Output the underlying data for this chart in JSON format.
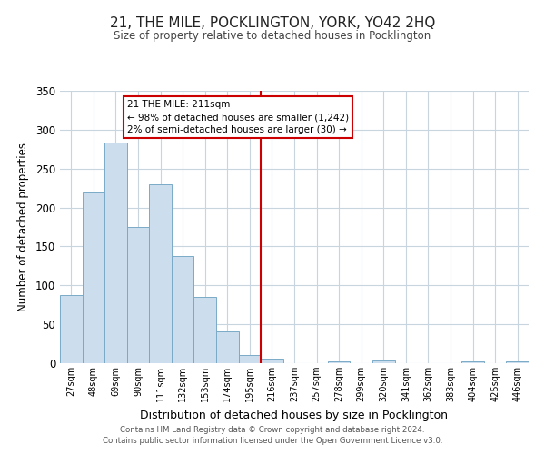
{
  "title": "21, THE MILE, POCKLINGTON, YORK, YO42 2HQ",
  "subtitle": "Size of property relative to detached houses in Pocklington",
  "xlabel": "Distribution of detached houses by size in Pocklington",
  "ylabel": "Number of detached properties",
  "bar_labels": [
    "27sqm",
    "48sqm",
    "69sqm",
    "90sqm",
    "111sqm",
    "132sqm",
    "153sqm",
    "174sqm",
    "195sqm",
    "216sqm",
    "237sqm",
    "257sqm",
    "278sqm",
    "299sqm",
    "320sqm",
    "341sqm",
    "362sqm",
    "383sqm",
    "404sqm",
    "425sqm",
    "446sqm"
  ],
  "bar_values": [
    87,
    219,
    283,
    175,
    230,
    138,
    85,
    41,
    11,
    6,
    0,
    0,
    2,
    0,
    3,
    0,
    0,
    0,
    2,
    0,
    2
  ],
  "bar_color": "#ccdded",
  "bar_edgecolor": "#7aaac8",
  "vline_color": "#cc0000",
  "annotation_title": "21 THE MILE: 211sqm",
  "annotation_line1": "← 98% of detached houses are smaller (1,242)",
  "annotation_line2": "2% of semi-detached houses are larger (30) →",
  "annotation_box_edgecolor": "#cc0000",
  "ylim": [
    0,
    350
  ],
  "yticks": [
    0,
    50,
    100,
    150,
    200,
    250,
    300,
    350
  ],
  "footer1": "Contains HM Land Registry data © Crown copyright and database right 2024.",
  "footer2": "Contains public sector information licensed under the Open Government Licence v3.0.",
  "bg_color": "#ffffff",
  "grid_color": "#c8d4de"
}
